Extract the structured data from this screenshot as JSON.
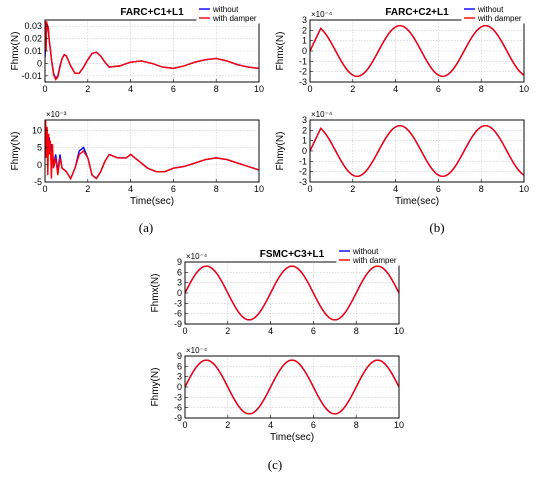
{
  "labels": {
    "panel_a": "(a)",
    "panel_b": "(b)",
    "panel_c": "(c)"
  },
  "chart_data": [
    {
      "id": "a_top",
      "type": "line",
      "title": "FARC+C1+L1",
      "ylabel": "Fhmx(N)",
      "xlabel": "",
      "xlim": [
        0,
        10
      ],
      "ylim": [
        -0.015,
        0.035
      ],
      "yticks": [
        -0.01,
        0,
        0.01,
        0.02,
        0.03
      ],
      "ytick_labels": [
        "-0.01",
        "0",
        "0.01",
        "0.02",
        "0.03"
      ],
      "xticks": [
        0,
        2,
        4,
        6,
        8,
        10
      ],
      "multiplier": "",
      "grid": true,
      "legend": "top-right",
      "series": [
        {
          "name": "without",
          "color": "#0000ff",
          "x": [
            0,
            0.05,
            0.1,
            0.15,
            0.2,
            0.3,
            0.4,
            0.5,
            0.6,
            0.7,
            0.8,
            0.9,
            1.0,
            1.2,
            1.4,
            1.6,
            1.8,
            2.0,
            2.2,
            2.4,
            2.6,
            2.8,
            3.0,
            3.5,
            4.0,
            4.5,
            5.0,
            5.5,
            6.0,
            6.5,
            7.0,
            7.5,
            8.0,
            8.5,
            9.0,
            9.5,
            10
          ],
          "y": [
            0.005,
            0.022,
            0.032,
            0.028,
            0.018,
            0.004,
            -0.008,
            -0.012,
            -0.01,
            -0.002,
            0.004,
            0.007,
            0.006,
            -0.002,
            -0.008,
            -0.008,
            -0.003,
            0.003,
            0.008,
            0.009,
            0.006,
            0.001,
            -0.003,
            -0.002,
            0.001,
            0.002,
            0.0,
            -0.003,
            -0.004,
            -0.002,
            0.001,
            0.003,
            0.004,
            0.002,
            -0.001,
            -0.003,
            -0.004
          ]
        },
        {
          "name": "with damper",
          "color": "#ff0000",
          "x": [
            0,
            0.02,
            0.05,
            0.08,
            0.1,
            0.15,
            0.2,
            0.25,
            0.3,
            0.4,
            0.5,
            0.6,
            0.7,
            0.8,
            0.9,
            1.0,
            1.2,
            1.4,
            1.6,
            1.8,
            2.0,
            2.2,
            2.4,
            2.6,
            2.8,
            3.0,
            3.5,
            4.0,
            4.5,
            5.0,
            5.5,
            6.0,
            6.5,
            7.0,
            7.5,
            8.0,
            8.5,
            9.0,
            9.5,
            10
          ],
          "y": [
            0.02,
            0.034,
            0.01,
            0.034,
            0.028,
            0.03,
            0.018,
            0.012,
            0.003,
            -0.009,
            -0.013,
            -0.011,
            -0.003,
            0.004,
            0.007,
            0.006,
            -0.002,
            -0.008,
            -0.008,
            -0.003,
            0.003,
            0.008,
            0.009,
            0.006,
            0.001,
            -0.003,
            -0.002,
            0.001,
            0.002,
            0.0,
            -0.003,
            -0.004,
            -0.002,
            0.001,
            0.003,
            0.004,
            0.002,
            -0.001,
            -0.003,
            -0.004
          ]
        }
      ]
    },
    {
      "id": "a_bottom",
      "type": "line",
      "title": "",
      "ylabel": "Fhmy(N)",
      "xlabel": "Time(sec)",
      "xlim": [
        0,
        10
      ],
      "ylim": [
        -5,
        13
      ],
      "yticks": [
        -5,
        0,
        5,
        10
      ],
      "ytick_labels": [
        "-5",
        "0",
        "5",
        "10"
      ],
      "xticks": [
        0,
        2,
        4,
        6,
        8,
        10
      ],
      "multiplier": "×10⁻³",
      "grid": true,
      "legend": "",
      "series": [
        {
          "name": "without",
          "color": "#0000ff",
          "x": [
            0,
            0.05,
            0.1,
            0.15,
            0.2,
            0.25,
            0.3,
            0.4,
            0.5,
            0.6,
            0.7,
            0.8,
            1.0,
            1.2,
            1.4,
            1.6,
            1.8,
            2.0,
            2.2,
            2.4,
            2.6,
            2.8,
            3.0,
            3.4,
            3.8,
            4.0,
            4.4,
            4.8,
            5.2,
            5.6,
            6.0,
            6.5,
            7.0,
            7.5,
            8.0,
            8.5,
            9.0,
            9.5,
            10
          ],
          "y": [
            2,
            10,
            7,
            5,
            8,
            3,
            6,
            0,
            3,
            -2,
            3,
            -1,
            -2,
            -4,
            -1,
            4,
            5,
            2,
            -3,
            -4,
            -2,
            1,
            3,
            2,
            2,
            3,
            1,
            -1,
            -2,
            -2,
            -1,
            -0.5,
            0.5,
            1.5,
            2,
            1.5,
            0.5,
            -0.5,
            -1.5
          ]
        },
        {
          "name": "with damper",
          "color": "#ff0000",
          "x": [
            0,
            0.03,
            0.06,
            0.1,
            0.13,
            0.17,
            0.2,
            0.25,
            0.3,
            0.35,
            0.4,
            0.5,
            0.6,
            0.7,
            0.8,
            1.0,
            1.2,
            1.4,
            1.6,
            1.8,
            2.0,
            2.2,
            2.4,
            2.6,
            2.8,
            3.0,
            3.4,
            3.8,
            4.0,
            4.4,
            4.8,
            5.2,
            5.6,
            6.0,
            6.5,
            7.0,
            7.5,
            8.0,
            8.5,
            9.0,
            9.5,
            10
          ],
          "y": [
            5,
            13,
            2,
            11,
            -3,
            9,
            3,
            7,
            -4,
            6,
            -1,
            2,
            -3,
            2,
            -1,
            -2,
            -4,
            -1,
            3,
            4,
            2,
            -3,
            -4,
            -2,
            1,
            3,
            2,
            2,
            3,
            1,
            -1,
            -2,
            -2,
            -1,
            -0.5,
            0.5,
            1.5,
            2,
            1.5,
            0.5,
            -0.5,
            -1.5
          ]
        }
      ]
    },
    {
      "id": "b_top",
      "type": "line",
      "title": "FARC+C2+L1",
      "ylabel": "Fhmx(N)",
      "xlabel": "",
      "xlim": [
        0,
        10
      ],
      "ylim": [
        -3,
        3
      ],
      "yticks": [
        -3,
        -2,
        -1,
        0,
        1,
        2,
        3
      ],
      "ytick_labels": [
        "-3",
        "-2",
        "-1",
        "0",
        "1",
        "2",
        "3"
      ],
      "xticks": [
        0,
        2,
        4,
        6,
        8,
        10
      ],
      "multiplier": "×10⁻⁴",
      "grid": true,
      "legend": "top-right",
      "series": [
        {
          "name": "without",
          "color": "#0000ff",
          "kind": "sine",
          "amp": 2.45,
          "period": 4,
          "peak": 4.2,
          "onset": 0.5,
          "start": 0
        },
        {
          "name": "with damper",
          "color": "#ff0000",
          "kind": "sine",
          "amp": 2.45,
          "period": 4,
          "peak": 4.2,
          "onset": 0.5,
          "start": 0
        }
      ]
    },
    {
      "id": "b_bottom",
      "type": "line",
      "title": "",
      "ylabel": "Fhmy(N)",
      "xlabel": "Time(sec)",
      "xlim": [
        0,
        10
      ],
      "ylim": [
        -3,
        3
      ],
      "yticks": [
        -3,
        -2,
        -1,
        0,
        1,
        2,
        3
      ],
      "ytick_labels": [
        "-3",
        "-2",
        "-1",
        "0",
        "1",
        "2",
        "3"
      ],
      "xticks": [
        0,
        2,
        4,
        6,
        8,
        10
      ],
      "multiplier": "×10⁻⁴",
      "grid": true,
      "legend": "",
      "series": [
        {
          "name": "without",
          "color": "#0000ff",
          "kind": "sine",
          "amp": 2.45,
          "period": 4,
          "peak": 4.2,
          "onset": 0.5,
          "start": 0
        },
        {
          "name": "with damper",
          "color": "#ff0000",
          "kind": "sine",
          "amp": 2.45,
          "period": 4,
          "peak": 4.2,
          "onset": 0.5,
          "start": 0
        }
      ]
    },
    {
      "id": "c_top",
      "type": "line",
      "title": "FSMC+C3+L1",
      "ylabel": "Fhmx(N)",
      "xlabel": "",
      "xlim": [
        0,
        10
      ],
      "ylim": [
        -9,
        9
      ],
      "yticks": [
        -9,
        -6,
        -3,
        0,
        3,
        6,
        9
      ],
      "ytick_labels": [
        "-9",
        "-6",
        "-3",
        "0",
        "3",
        "6",
        "9"
      ],
      "xticks": [
        0,
        2,
        4,
        6,
        8,
        10
      ],
      "multiplier": "×10⁻⁴",
      "grid": true,
      "legend": "top-right",
      "series": [
        {
          "name": "without",
          "color": "#0000ff",
          "kind": "sine",
          "amp": 7.8,
          "period": 4,
          "peak": 1.0,
          "onset": 0,
          "start": -1.5
        },
        {
          "name": "with damper",
          "color": "#ff0000",
          "kind": "sine",
          "amp": 7.8,
          "period": 4,
          "peak": 1.0,
          "onset": 0,
          "start": -1.5
        }
      ]
    },
    {
      "id": "c_bottom",
      "type": "line",
      "title": "",
      "ylabel": "Fhmy(N)",
      "xlabel": "Time(sec)",
      "xlim": [
        0,
        10
      ],
      "ylim": [
        -9,
        9
      ],
      "yticks": [
        -9,
        -6,
        -3,
        0,
        3,
        6,
        9
      ],
      "ytick_labels": [
        "-9",
        "-6",
        "-3",
        "0",
        "3",
        "6",
        "9"
      ],
      "xticks": [
        0,
        2,
        4,
        6,
        8,
        10
      ],
      "multiplier": "×10⁻⁴",
      "grid": true,
      "legend": "",
      "series": [
        {
          "name": "without",
          "color": "#0000ff",
          "kind": "sine",
          "amp": 7.8,
          "period": 4,
          "peak": 1.0,
          "onset": 0,
          "start": -1.5
        },
        {
          "name": "with damper",
          "color": "#ff0000",
          "kind": "sine",
          "amp": 7.8,
          "period": 4,
          "peak": 1.0,
          "onset": 0,
          "start": -1.5
        }
      ]
    }
  ]
}
